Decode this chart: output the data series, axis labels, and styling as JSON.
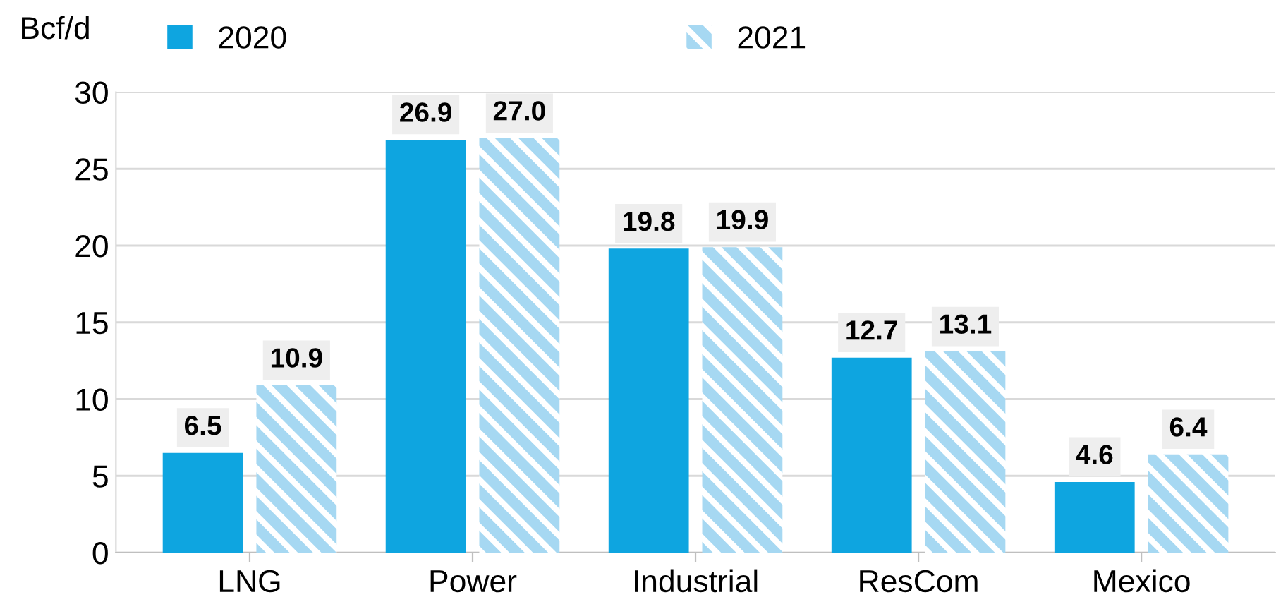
{
  "chart_data": {
    "type": "bar",
    "ylabel": "Bcf/d",
    "categories": [
      "LNG",
      "Power",
      "Industrial",
      "ResCom",
      "Mexico"
    ],
    "series": [
      {
        "name": "2020",
        "color": "#0ea5e0",
        "values": [
          6.5,
          26.9,
          19.8,
          12.7,
          4.6
        ],
        "value_labels": [
          "6.5",
          "26.9",
          "19.8",
          "12.7",
          "4.6"
        ]
      },
      {
        "name": "2021",
        "color": "#a6d8f2",
        "values": [
          10.9,
          27.0,
          19.9,
          13.1,
          6.4
        ],
        "value_labels": [
          "10.9",
          "27.0",
          "19.9",
          "13.1",
          "6.4"
        ]
      }
    ],
    "ylim": [
      0,
      30
    ],
    "yticks": [
      0,
      5,
      10,
      15,
      20,
      25,
      30
    ],
    "grid": "y",
    "legend": "top"
  }
}
